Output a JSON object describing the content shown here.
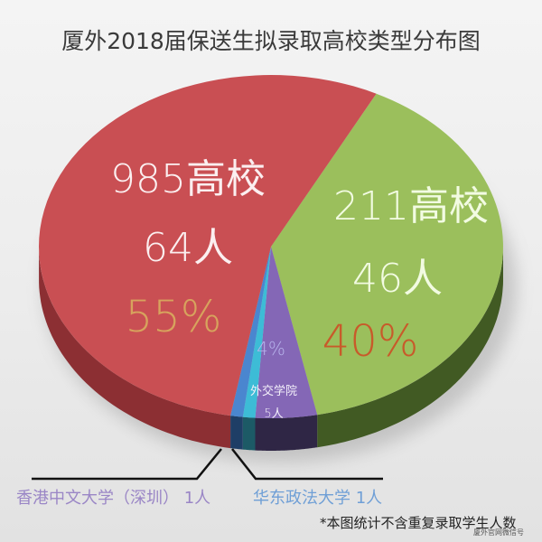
{
  "title": "厦外2018届保送生拟录取高校类型分布图",
  "chart_data": {
    "type": "pie",
    "style": "3d",
    "title": "厦外2018届保送生拟录取高校类型分布图",
    "categories": [
      "985高校",
      "211高校",
      "外交学院",
      "华东政法大学",
      "香港中文大学（深圳）"
    ],
    "values": [
      64,
      46,
      5,
      1,
      1
    ],
    "unit": "人",
    "percent_labels": [
      "55%",
      "40%",
      "4%",
      null,
      null
    ],
    "colors": [
      "#c94f53",
      "#9bbf5c",
      "#8467b6",
      "#3dbcd6",
      "#4a86cf"
    ],
    "side_colors": [
      "#8c2f33",
      "#415a23",
      "#2f2645",
      "#1c5a66",
      "#1e3e66"
    ],
    "legend_position": "none",
    "note": "*本图统计不含重复录取学生人数"
  },
  "labels": {
    "s985_name": "985高校",
    "s985_count": "64人",
    "s985_pct": "55%",
    "s211_name": "211高校",
    "s211_count": "46人",
    "s211_pct": "40%",
    "waijiao_pct": "4%",
    "waijiao_name": "外交学院",
    "waijiao_count": "5人",
    "cuhk": "香港中文大学（深圳） 1人",
    "ecupl": "华东政法大学 1人"
  },
  "note": "*本图统计不含重复录取学生人数",
  "watermark": "厦外官网微信号"
}
